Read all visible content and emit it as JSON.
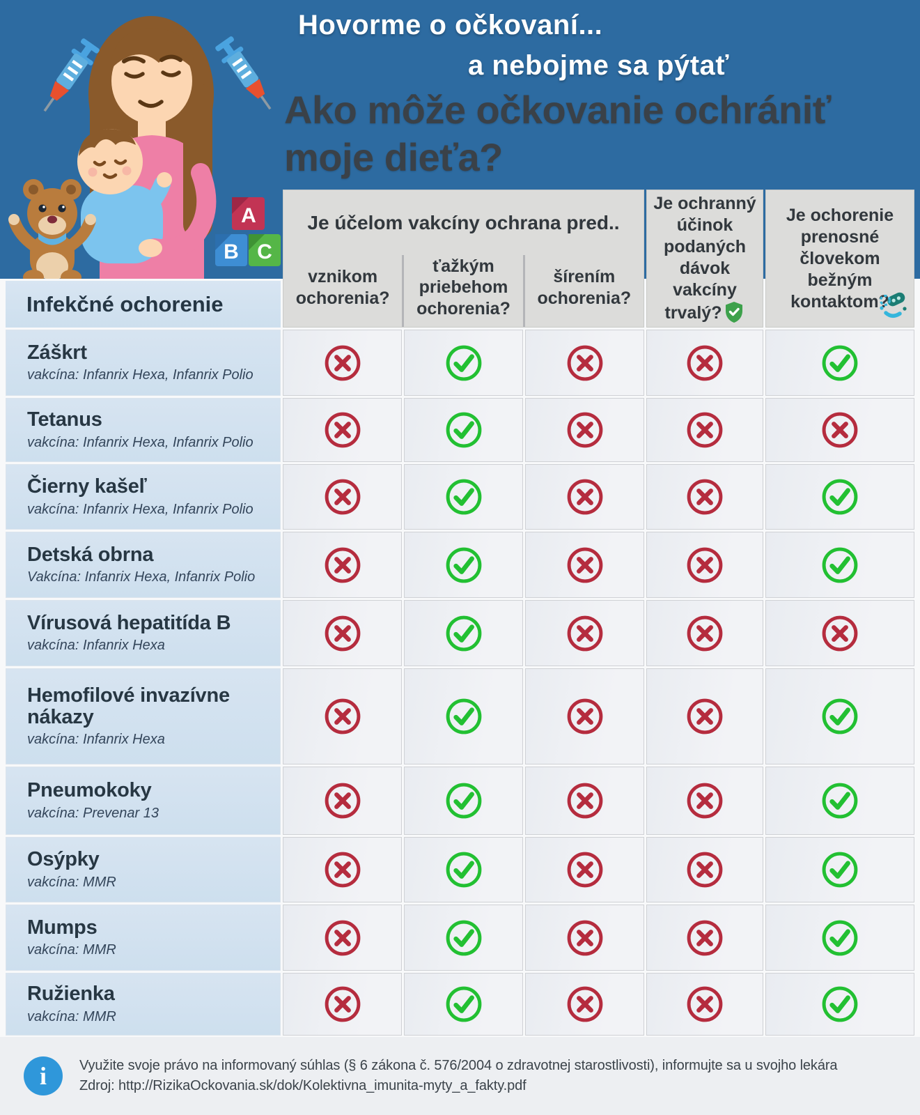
{
  "header": {
    "title_line1": "Hovorme o očkovaní...",
    "title_line2": "a nebojme sa pýtať",
    "subtitle_line1": "Ako môže očkovanie ochrániť",
    "subtitle_line2": "moje dieťa?"
  },
  "table": {
    "disease_column_header": "Infekčné ochorenie",
    "group_header": "Je účelom vakcíny ochrana pred..",
    "sub_headers": [
      "vznikom ochorenia?",
      "ťažkým priebehom ochorenia?",
      "šírením ochorenia?"
    ],
    "col4_header": "Je ochranný účinok podaných dávok vakcíny trvalý?",
    "col5_header": "Je ochorenie prenosné človekom bežným kontaktom?",
    "rows": [
      {
        "disease": "Záškrt",
        "vaccine": "vakcína: Infanrix Hexa, Infanrix Polio",
        "values": [
          "no",
          "yes",
          "no",
          "no",
          "yes"
        ]
      },
      {
        "disease": "Tetanus",
        "vaccine": "vakcína: Infanrix Hexa, Infanrix Polio",
        "values": [
          "no",
          "yes",
          "no",
          "no",
          "no"
        ]
      },
      {
        "disease": "Čierny kašeľ",
        "vaccine": "vakcína: Infanrix Hexa, Infanrix Polio",
        "values": [
          "no",
          "yes",
          "no",
          "no",
          "yes"
        ]
      },
      {
        "disease": "Detská obrna",
        "vaccine": "Vakcína: Infanrix Hexa, Infanrix Polio",
        "values": [
          "no",
          "yes",
          "no",
          "no",
          "yes"
        ]
      },
      {
        "disease": "Vírusová hepatitída B",
        "vaccine": "vakcína: Infanrix Hexa",
        "values": [
          "no",
          "yes",
          "no",
          "no",
          "no"
        ]
      },
      {
        "disease": "Hemofilové invazívne nákazy",
        "vaccine": "vakcína: Infanrix Hexa",
        "values": [
          "no",
          "yes",
          "no",
          "no",
          "yes"
        ]
      },
      {
        "disease": "Pneumokoky",
        "vaccine": "vakcína: Prevenar 13",
        "values": [
          "no",
          "yes",
          "no",
          "no",
          "yes"
        ]
      },
      {
        "disease": "Osýpky",
        "vaccine": "vakcína: MMR",
        "values": [
          "no",
          "yes",
          "no",
          "no",
          "yes"
        ]
      },
      {
        "disease": "Mumps",
        "vaccine": "vakcína: MMR",
        "values": [
          "no",
          "yes",
          "no",
          "no",
          "yes"
        ]
      },
      {
        "disease": "Ružienka",
        "vaccine": "vakcína: MMR",
        "values": [
          "no",
          "yes",
          "no",
          "no",
          "yes"
        ]
      }
    ]
  },
  "footer": {
    "info_glyph": "i",
    "line1": "Využite svoje právo na informovaný súhlas (§ 6 zákona č. 576/2004 o zdravotnej starostlivosti), informujte sa u svojho lekára",
    "line2": "Zdroj: http://RizikaOckovania.sk/dok/Kolektivna_imunita-myty_a_fakty.pdf"
  },
  "icons": {
    "yes": "check-circle",
    "no": "cross-circle",
    "col4_badge": "shield-check",
    "col5_badge": "pathogen-germs",
    "footer_badge": "info-circle"
  },
  "colors": {
    "hero_blue": "#2d6ba1",
    "title_white": "#ffffff",
    "title_dark": "#3a4148",
    "header_cell_bg": "#dcdcda",
    "header_text": "#32383d",
    "disease_cell_bg": "#cddfee",
    "body_cell_bg": "#f2f3f6",
    "yes_green": "#22c032",
    "no_red": "#b52c3e",
    "shield_green": "#3da14b",
    "germ_teal": "#1b7d74",
    "germ_blue": "#35b6dc",
    "footer_bg": "#edeff2",
    "footer_text": "#3b434a",
    "info_blue": "#2f97da"
  }
}
